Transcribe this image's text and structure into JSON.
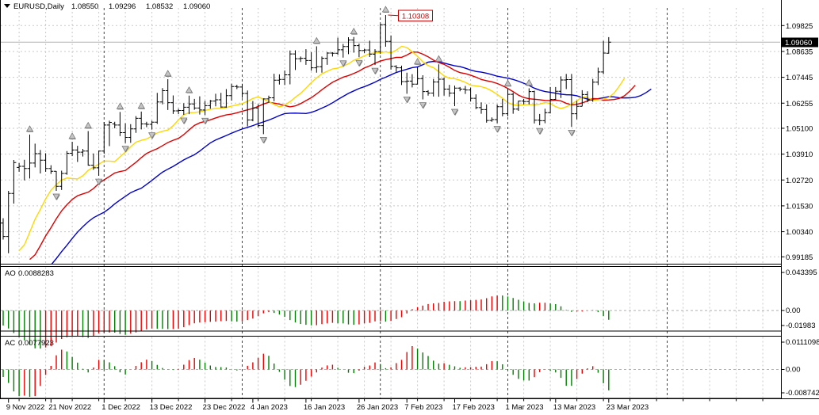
{
  "window": {
    "symbol_label": "EURUSD,Daily",
    "open": "1.08550",
    "high": "1.09296",
    "low": "1.08532",
    "close": "1.09060"
  },
  "colors": {
    "background": "#ffffff",
    "bar": "#000000",
    "grid": "#c9c9c9",
    "month_separator": "#444444",
    "current_price_line": "#b4b4b4",
    "current_price_label_bg": "#000000",
    "annotation_red": "#cc0000",
    "alligator_jaw": "#0000cc",
    "alligator_teeth": "#dd0000",
    "alligator_lips": "#ffd700",
    "osc_up": "#008000",
    "osc_down": "#ee0000",
    "fractal_fill": "#c4c4c4",
    "fractal_edge": "#6e6e6e"
  },
  "price_axis": {
    "current": {
      "label": "1.09060",
      "value": 1.0906
    },
    "ticks": [
      {
        "label": "1.09825",
        "value": 1.09825
      },
      {
        "label": "1.08635",
        "value": 1.08635
      },
      {
        "label": "1.07445",
        "value": 1.07445
      },
      {
        "label": "1.06255",
        "value": 1.06255
      },
      {
        "label": "1.05100",
        "value": 1.051
      },
      {
        "label": "1.03910",
        "value": 1.0391
      },
      {
        "label": "1.02720",
        "value": 1.0272
      },
      {
        "label": "1.01530",
        "value": 1.0153
      },
      {
        "label": "1.00340",
        "value": 1.0034
      },
      {
        "label": "0.99185",
        "value": 0.99185
      }
    ]
  },
  "annotation": {
    "text": "1.10308",
    "value": 1.10308
  },
  "indicators": {
    "ao": {
      "name": "AO",
      "value_text": "0.0088283",
      "axis": {
        "max": "0.043395",
        "zero": "0.00",
        "min": "-0.01983"
      }
    },
    "ac": {
      "name": "AC",
      "value_text": "0.0077923",
      "axis": {
        "max": "0.0111098",
        "zero": "0.00",
        "min": "-0.0087425"
      }
    }
  },
  "time_axis": {
    "labels": [
      {
        "i": 1,
        "text": "9 Nov 2022"
      },
      {
        "i": 9,
        "text": "21 Nov 2022"
      },
      {
        "i": 19,
        "text": "1 Dec 2022"
      },
      {
        "i": 28,
        "text": "13 Dec 2022"
      },
      {
        "i": 38,
        "text": "23 Dec 2022"
      },
      {
        "i": 47,
        "text": "4 Jan 2023"
      },
      {
        "i": 57,
        "text": "16 Jan 2023"
      },
      {
        "i": 67,
        "text": "26 Jan 2023"
      },
      {
        "i": 76,
        "text": "7 Feb 2023"
      },
      {
        "i": 85,
        "text": "17 Feb 2023"
      },
      {
        "i": 95,
        "text": "1 Mar 2023"
      },
      {
        "i": 104,
        "text": "13 Mar 2023"
      },
      {
        "i": 114,
        "text": "23 Mar 2023"
      }
    ]
  },
  "chart_data": {
    "type": "ohlc-bar-chart",
    "symbol": "EURUSD",
    "timeframe": "Daily",
    "ylim": [
      0.9889,
      1.107
    ],
    "grid": true,
    "separators_bar_index": [
      19,
      45,
      71,
      95,
      125
    ],
    "alligator": {
      "jaw": {
        "period": 13,
        "shift": 8
      },
      "teeth": {
        "period": 8,
        "shift": 5
      },
      "lips": {
        "period": 5,
        "shift": 3
      }
    },
    "prehistory_median_estimate": [
      0.998,
      0.996,
      0.99,
      0.984,
      0.98,
      0.976,
      0.97,
      0.966,
      0.964,
      0.96,
      0.956,
      0.962,
      0.968,
      0.972,
      0.976,
      0.979,
      0.977,
      0.973,
      0.97,
      0.969,
      0.972,
      0.976,
      0.98,
      0.977,
      0.974,
      0.971,
      0.969,
      0.973,
      0.977,
      0.981,
      0.985,
      0.989,
      0.986,
      0.983,
      0.987,
      0.991,
      0.995,
      0.988,
      0.984,
      0.99,
      0.999,
      1.004
    ],
    "bars": [
      [
        1.0074,
        1.0096,
        0.9998,
        1.0012
      ],
      [
        1.0012,
        1.0222,
        0.9935,
        1.021
      ],
      [
        1.021,
        1.0364,
        1.0163,
        1.0352
      ],
      [
        1.033,
        1.035,
        1.031,
        1.0335
      ],
      [
        1.0335,
        1.0365,
        1.027,
        1.0325
      ],
      [
        1.0325,
        1.0481,
        1.0279,
        1.035
      ],
      [
        1.035,
        1.0439,
        1.033,
        1.0393
      ],
      [
        1.0393,
        1.041,
        1.0302,
        1.0363
      ],
      [
        1.0363,
        1.0395,
        1.031,
        1.0325
      ],
      [
        1.0325,
        1.034,
        1.03,
        1.0312
      ],
      [
        1.0312,
        1.0313,
        1.0222,
        1.0243
      ],
      [
        1.0243,
        1.0315,
        1.0226,
        1.0302
      ],
      [
        1.0302,
        1.0405,
        1.0296,
        1.0395
      ],
      [
        1.0395,
        1.0448,
        1.0382,
        1.041
      ],
      [
        1.041,
        1.0429,
        1.0355,
        1.04
      ],
      [
        1.04,
        1.0415,
        1.038,
        1.0405
      ],
      [
        1.0405,
        1.0497,
        1.0338,
        1.034
      ],
      [
        1.034,
        1.0394,
        1.0319,
        1.0328
      ],
      [
        1.0328,
        1.0408,
        1.0291,
        1.0405
      ],
      [
        1.0405,
        1.0539,
        1.0393,
        1.0525
      ],
      [
        1.0525,
        1.0545,
        1.0428,
        1.0537
      ],
      [
        1.053,
        1.054,
        1.051,
        1.0525
      ],
      [
        1.0525,
        1.0585,
        1.0474,
        1.049
      ],
      [
        1.049,
        1.0533,
        1.0442,
        1.0468
      ],
      [
        1.0468,
        1.0529,
        1.0443,
        1.0507
      ],
      [
        1.0507,
        1.0566,
        1.0489,
        1.0556
      ],
      [
        1.0556,
        1.0587,
        1.0505,
        1.053
      ],
      [
        1.053,
        1.054,
        1.0515,
        1.0528
      ],
      [
        1.0528,
        1.0545,
        1.0504,
        1.0538
      ],
      [
        1.0538,
        1.0673,
        1.053,
        1.0631
      ],
      [
        1.0631,
        1.0695,
        1.062,
        1.0683
      ],
      [
        1.0683,
        1.0736,
        1.0594,
        1.0628
      ],
      [
        1.0628,
        1.0661,
        1.0576,
        1.059
      ],
      [
        1.059,
        1.06,
        1.0575,
        1.0592
      ],
      [
        1.0592,
        1.0625,
        1.0572,
        1.0607
      ],
      [
        1.0607,
        1.066,
        1.0575,
        1.0622
      ],
      [
        1.0622,
        1.0645,
        1.0595,
        1.0603
      ],
      [
        1.0603,
        1.0657,
        1.0573,
        1.0594
      ],
      [
        1.0594,
        1.0636,
        1.0571,
        1.0614
      ],
      [
        1.0614,
        1.064,
        1.06,
        1.0635
      ],
      [
        1.0635,
        1.0669,
        1.0611,
        1.0641
      ],
      [
        1.0641,
        1.0673,
        1.0604,
        1.0608
      ],
      [
        1.0608,
        1.069,
        1.0604,
        1.066
      ],
      [
        1.066,
        1.0715,
        1.0637,
        1.0702
      ],
      [
        1.0702,
        1.071,
        1.069,
        1.07
      ],
      [
        1.07,
        1.0715,
        1.065,
        1.067
      ],
      [
        1.067,
        1.0684,
        1.0519,
        1.0548
      ],
      [
        1.0548,
        1.0635,
        1.0542,
        1.0603
      ],
      [
        1.0603,
        1.0621,
        1.0514,
        1.0522
      ],
      [
        1.0522,
        1.0648,
        1.0483,
        1.0645
      ],
      [
        1.0645,
        1.066,
        1.063,
        1.065
      ],
      [
        1.065,
        1.0761,
        1.0634,
        1.0731
      ],
      [
        1.0731,
        1.0758,
        1.0711,
        1.0735
      ],
      [
        1.0735,
        1.0776,
        1.0709,
        1.0756
      ],
      [
        1.0756,
        1.0868,
        1.0712,
        1.0852
      ],
      [
        1.0852,
        1.0869,
        1.0778,
        1.083
      ],
      [
        1.083,
        1.084,
        1.0815,
        1.0832
      ],
      [
        1.0832,
        1.0874,
        1.0802,
        1.0822
      ],
      [
        1.0822,
        1.086,
        1.0775,
        1.0788
      ],
      [
        1.0788,
        1.0887,
        1.0766,
        1.0793
      ],
      [
        1.0793,
        1.084,
        1.0766,
        1.0832
      ],
      [
        1.0832,
        1.086,
        1.0802,
        1.0856
      ],
      [
        1.0856,
        1.086,
        1.084,
        1.0855
      ],
      [
        1.0855,
        1.0927,
        1.0848,
        1.0871
      ],
      [
        1.0871,
        1.0898,
        1.0835,
        1.0886
      ],
      [
        1.0886,
        1.0929,
        1.0851,
        1.0916
      ],
      [
        1.0916,
        1.093,
        1.0858,
        1.089
      ],
      [
        1.089,
        1.09,
        1.0837,
        1.0868
      ],
      [
        1.0868,
        1.0875,
        1.0855,
        1.087
      ],
      [
        1.087,
        1.0913,
        1.0838,
        1.0851
      ],
      [
        1.0851,
        1.0874,
        1.0801,
        1.0863
      ],
      [
        1.0863,
        1.0989,
        1.0852,
        1.0987
      ],
      [
        1.0987,
        1.10308,
        1.0885,
        1.091
      ],
      [
        1.091,
        1.0937,
        1.078,
        1.0795
      ],
      [
        1.0795,
        1.08,
        1.077,
        1.0788
      ],
      [
        1.0788,
        1.0798,
        1.0709,
        1.0725
      ],
      [
        1.0725,
        1.0766,
        1.0669,
        1.0727
      ],
      [
        1.0727,
        1.0759,
        1.0698,
        1.0713
      ],
      [
        1.0713,
        1.0791,
        1.0711,
        1.0738
      ],
      [
        1.0738,
        1.0754,
        1.0643,
        1.0679
      ],
      [
        1.0679,
        1.0685,
        1.066,
        1.0672
      ],
      [
        1.0672,
        1.0737,
        1.0656,
        1.0723
      ],
      [
        1.0723,
        1.0804,
        1.0655,
        1.0736
      ],
      [
        1.0736,
        1.0744,
        1.066,
        1.069
      ],
      [
        1.069,
        1.071,
        1.0655,
        1.0672
      ],
      [
        1.0672,
        1.0706,
        1.0612,
        1.0695
      ],
      [
        1.0695,
        1.07,
        1.068,
        1.069
      ],
      [
        1.069,
        1.0705,
        1.0668,
        1.0686
      ],
      [
        1.0686,
        1.0697,
        1.0633,
        1.0648
      ],
      [
        1.0648,
        1.0666,
        1.0598,
        1.0605
      ],
      [
        1.0605,
        1.0629,
        1.0577,
        1.0596
      ],
      [
        1.0596,
        1.062,
        1.0536,
        1.0546
      ],
      [
        1.0546,
        1.056,
        1.054,
        1.055
      ],
      [
        1.055,
        1.0619,
        1.0533,
        1.0609
      ],
      [
        1.0609,
        1.0645,
        1.0565,
        1.0577
      ],
      [
        1.0577,
        1.0691,
        1.0565,
        1.0666
      ],
      [
        1.0666,
        1.0674,
        1.0577,
        1.0598
      ],
      [
        1.0598,
        1.0637,
        1.059,
        1.0635
      ],
      [
        1.0635,
        1.0645,
        1.062,
        1.0633
      ],
      [
        1.0633,
        1.0694,
        1.062,
        1.0679
      ],
      [
        1.0679,
        1.0683,
        1.0532,
        1.0547
      ],
      [
        1.0547,
        1.0576,
        1.0524,
        1.0545
      ],
      [
        1.0545,
        1.06,
        1.0533,
        1.0582
      ],
      [
        1.0582,
        1.07,
        1.0578,
        1.0643
      ],
      [
        1.0643,
        1.07,
        1.064,
        1.068
      ],
      [
        1.068,
        1.0749,
        1.0649,
        1.0732
      ],
      [
        1.0732,
        1.076,
        1.069,
        1.0734
      ],
      [
        1.0734,
        1.076,
        1.0516,
        1.0577
      ],
      [
        1.0577,
        1.0636,
        1.0551,
        1.0611
      ],
      [
        1.0611,
        1.0685,
        1.0611,
        1.0665
      ],
      [
        1.0665,
        1.068,
        1.063,
        1.064
      ],
      [
        1.064,
        1.0737,
        1.0632,
        1.0722
      ],
      [
        1.0722,
        1.0789,
        1.0709,
        1.0769
      ],
      [
        1.0769,
        1.0912,
        1.0759,
        1.0856
      ],
      [
        1.0855,
        1.09296,
        1.08532,
        1.0906
      ]
    ]
  }
}
